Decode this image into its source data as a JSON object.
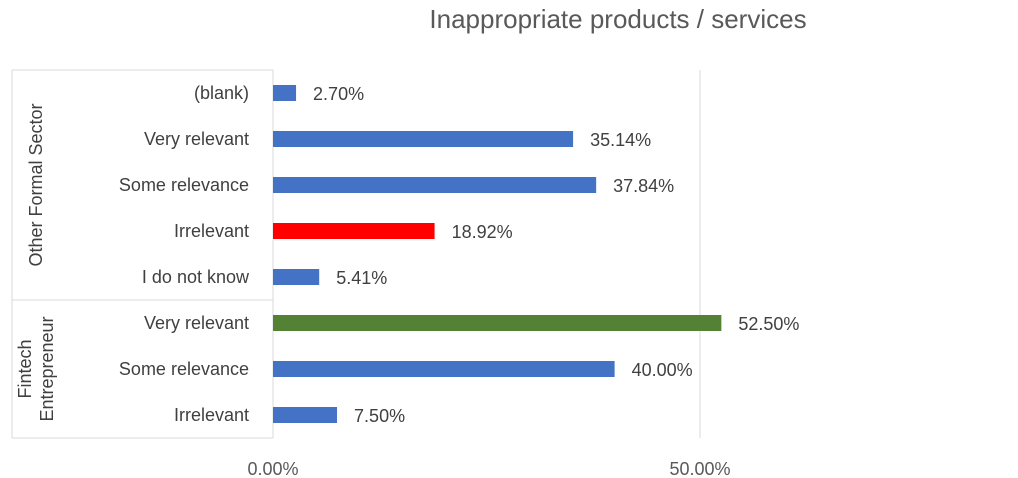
{
  "chart_data": {
    "type": "bar",
    "orientation": "horizontal",
    "title": "Inappropriate products / services",
    "xlabel": "",
    "ylabel": "",
    "xlim": [
      0,
      0.6
    ],
    "x_ticks": [
      "0.00%",
      "50.00%"
    ],
    "x_tick_values": [
      0,
      0.5
    ],
    "grid": true,
    "legend": "none",
    "groups": [
      {
        "name": "Other Formal Sector",
        "bars": [
          {
            "category": "(blank)",
            "value": 0.027,
            "label": "2.70%",
            "color": "#4472C4"
          },
          {
            "category": "Very relevant",
            "value": 0.3514,
            "label": "35.14%",
            "color": "#4472C4"
          },
          {
            "category": "Some relevance",
            "value": 0.3784,
            "label": "37.84%",
            "color": "#4472C4"
          },
          {
            "category": "Irrelevant",
            "value": 0.1892,
            "label": "18.92%",
            "color": "#FF0000"
          },
          {
            "category": "I do not know",
            "value": 0.0541,
            "label": "5.41%",
            "color": "#4472C4"
          }
        ]
      },
      {
        "name": "Fintech Entrepreneur",
        "name_lines": [
          "Fintech",
          "Entrepreneur"
        ],
        "bars": [
          {
            "category": "Very relevant",
            "value": 0.525,
            "label": "52.50%",
            "color": "#548235"
          },
          {
            "category": "Some relevance",
            "value": 0.4,
            "label": "40.00%",
            "color": "#4472C4"
          },
          {
            "category": "Irrelevant",
            "value": 0.075,
            "label": "7.50%",
            "color": "#4472C4"
          }
        ]
      }
    ]
  }
}
